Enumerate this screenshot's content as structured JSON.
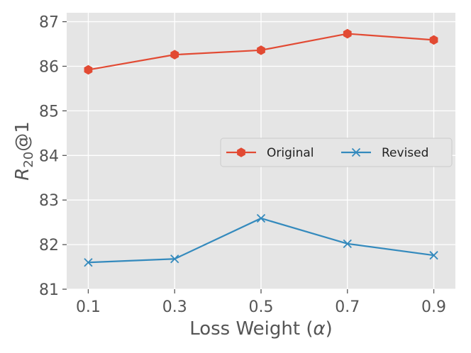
{
  "colors": {
    "plot_bg": "#e5e5e5",
    "grid": "#ffffff",
    "original": "#e24a33",
    "revised": "#348abd",
    "tick_text": "#555555"
  },
  "chart_data": {
    "type": "line",
    "x": [
      0.1,
      0.3,
      0.5,
      0.7,
      0.9
    ],
    "x_tick_labels": [
      "0.1",
      "0.3",
      "0.5",
      "0.7",
      "0.9"
    ],
    "y_ticks": [
      81,
      82,
      83,
      84,
      85,
      86,
      87
    ],
    "y_tick_labels": [
      "81",
      "82",
      "83",
      "84",
      "85",
      "86",
      "87"
    ],
    "xlim": [
      0.05,
      0.95
    ],
    "ylim": [
      81.0,
      87.2
    ],
    "xlabel_main": "Loss Weight (",
    "xlabel_symbol": "α",
    "xlabel_close": ")",
    "ylabel_main": "R",
    "ylabel_sub": "20",
    "ylabel_tail": "@1",
    "grid": true,
    "legend_position": "center-right",
    "series": [
      {
        "name": "Original",
        "marker": "hexagon",
        "values": [
          85.92,
          86.26,
          86.36,
          86.73,
          86.59
        ]
      },
      {
        "name": "Revised",
        "marker": "x",
        "values": [
          81.6,
          81.68,
          82.59,
          82.02,
          81.76
        ]
      }
    ]
  }
}
